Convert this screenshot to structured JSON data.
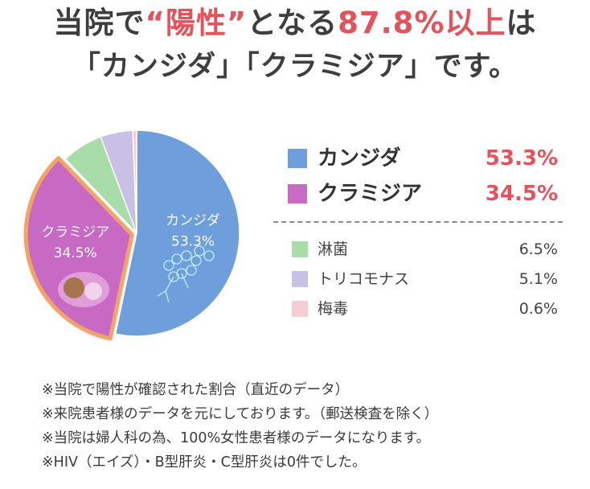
{
  "headline": {
    "line1_a": "当院で",
    "line1_b": "“陽性”",
    "line1_c": "となる",
    "line1_d": "87.8%以上",
    "line1_e": "は",
    "line2": "「カンジダ」「クラミジア」です。"
  },
  "chart_data": {
    "type": "pie",
    "unit": "%",
    "slices": [
      {
        "label": "カンジダ",
        "value": 53.3,
        "value_label": "53.3%",
        "color": "#6e9fdc",
        "highlight": false
      },
      {
        "label": "クラミジア",
        "value": 34.5,
        "value_label": "34.5%",
        "color": "#c86bc4",
        "highlight": true
      },
      {
        "label": "淋菌",
        "value": 6.5,
        "value_label": "6.5%",
        "color": "#a8dca8",
        "highlight": false
      },
      {
        "label": "トリコモナス",
        "value": 5.1,
        "value_label": "5.1%",
        "color": "#c8c0e6",
        "highlight": false
      },
      {
        "label": "梅毒",
        "value": 0.6,
        "value_label": "0.6%",
        "color": "#f6cdd2",
        "highlight": false
      }
    ],
    "highlight_border_color": "#f2a468"
  },
  "notes": [
    "※当院で陽性が確認された割合（直近のデータ）",
    "※来院患者様のデータを元にしております。（郵送検査を除く）",
    "※当院は婦人科の為、100%女性患者様のデータになります。",
    "※HIV（エイズ）・B型肝炎・C型肝炎は0件でした。"
  ]
}
